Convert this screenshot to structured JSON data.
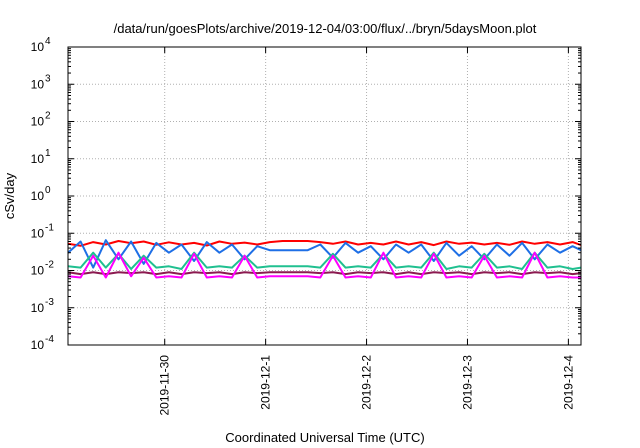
{
  "chart_data": {
    "type": "line",
    "title": "/data/run/goesPlots/archive/2019-12-04/03:00/flux/../bryn/5daysMoon.plot",
    "xlabel": "Coordinated Universal Time (UTC)",
    "ylabel": "cSv/day",
    "yscale": "log",
    "ylim": [
      0.0001,
      10000
    ],
    "xlim": [
      "2019-11-29 01:00",
      "2019-12-04 03:00"
    ],
    "grid": true,
    "legend": "none",
    "y_ticks": [
      {
        "base": "10",
        "exp": "-4",
        "value": 0.0001
      },
      {
        "base": "10",
        "exp": "-3",
        "value": 0.001
      },
      {
        "base": "10",
        "exp": "-2",
        "value": 0.01
      },
      {
        "base": "10",
        "exp": "-1",
        "value": 0.1
      },
      {
        "base": "10",
        "exp": "0",
        "value": 1
      },
      {
        "base": "10",
        "exp": "1",
        "value": 10
      },
      {
        "base": "10",
        "exp": "2",
        "value": 100
      },
      {
        "base": "10",
        "exp": "3",
        "value": 1000
      },
      {
        "base": "10",
        "exp": "4",
        "value": 10000
      }
    ],
    "x_ticks": [
      "2019-11-30",
      "2019-12-1",
      "2019-12-2",
      "2019-12-3",
      "2019-12-4"
    ],
    "x_tick_dates": [
      "2019-11-30 00:00",
      "2019-12-01 00:00",
      "2019-12-02 00:00",
      "2019-12-03 00:00",
      "2019-12-04 00:00"
    ],
    "series": [
      {
        "color": "#ff0000",
        "x": [
          "2019-11-29 01:00",
          "2019-11-29 04:00",
          "2019-11-29 07:00",
          "2019-11-29 10:00",
          "2019-11-29 13:00",
          "2019-11-29 16:00",
          "2019-11-29 19:00",
          "2019-11-29 22:00",
          "2019-11-30 01:00",
          "2019-11-30 04:00",
          "2019-11-30 07:00",
          "2019-11-30 10:00",
          "2019-11-30 13:00",
          "2019-11-30 16:00",
          "2019-11-30 19:00",
          "2019-11-30 22:00",
          "2019-12-01 01:00",
          "2019-12-01 04:00",
          "2019-12-01 07:00",
          "2019-12-01 10:00",
          "2019-12-01 13:00",
          "2019-12-01 16:00",
          "2019-12-01 19:00",
          "2019-12-01 22:00",
          "2019-12-02 01:00",
          "2019-12-02 04:00",
          "2019-12-02 07:00",
          "2019-12-02 10:00",
          "2019-12-02 13:00",
          "2019-12-02 16:00",
          "2019-12-02 19:00",
          "2019-12-02 22:00",
          "2019-12-03 01:00",
          "2019-12-03 04:00",
          "2019-12-03 07:00",
          "2019-12-03 10:00",
          "2019-12-03 13:00",
          "2019-12-03 16:00",
          "2019-12-03 19:00",
          "2019-12-03 22:00",
          "2019-12-04 01:00",
          "2019-12-04 03:00"
        ],
        "values": [
          0.052,
          0.046,
          0.058,
          0.05,
          0.062,
          0.054,
          0.06,
          0.049,
          0.057,
          0.05,
          0.055,
          0.047,
          0.06,
          0.052,
          0.056,
          0.05,
          0.058,
          0.062,
          0.062,
          0.062,
          0.058,
          0.052,
          0.06,
          0.05,
          0.055,
          0.05,
          0.06,
          0.05,
          0.058,
          0.048,
          0.06,
          0.052,
          0.056,
          0.05,
          0.055,
          0.049,
          0.06,
          0.052,
          0.058,
          0.05,
          0.058,
          0.048
        ]
      },
      {
        "color": "#1e6fe6",
        "x": [
          "2019-11-29 01:00",
          "2019-11-29 04:00",
          "2019-11-29 07:00",
          "2019-11-29 10:00",
          "2019-11-29 13:00",
          "2019-11-29 16:00",
          "2019-11-29 19:00",
          "2019-11-29 22:00",
          "2019-11-30 01:00",
          "2019-11-30 04:00",
          "2019-11-30 07:00",
          "2019-11-30 10:00",
          "2019-11-30 13:00",
          "2019-11-30 16:00",
          "2019-11-30 19:00",
          "2019-11-30 22:00",
          "2019-12-01 01:00",
          "2019-12-01 04:00",
          "2019-12-01 07:00",
          "2019-12-01 10:00",
          "2019-12-01 13:00",
          "2019-12-01 16:00",
          "2019-12-01 19:00",
          "2019-12-01 22:00",
          "2019-12-02 01:00",
          "2019-12-02 04:00",
          "2019-12-02 07:00",
          "2019-12-02 10:00",
          "2019-12-02 13:00",
          "2019-12-02 16:00",
          "2019-12-02 19:00",
          "2019-12-02 22:00",
          "2019-12-03 01:00",
          "2019-12-03 04:00",
          "2019-12-03 07:00",
          "2019-12-03 10:00",
          "2019-12-03 13:00",
          "2019-12-03 16:00",
          "2019-12-03 19:00",
          "2019-12-03 22:00",
          "2019-12-04 01:00",
          "2019-12-04 03:00"
        ],
        "values": [
          0.03,
          0.06,
          0.012,
          0.065,
          0.02,
          0.06,
          0.015,
          0.055,
          0.03,
          0.05,
          0.018,
          0.058,
          0.03,
          0.05,
          0.02,
          0.045,
          0.035,
          0.035,
          0.035,
          0.035,
          0.05,
          0.022,
          0.055,
          0.03,
          0.045,
          0.02,
          0.05,
          0.03,
          0.05,
          0.018,
          0.055,
          0.025,
          0.045,
          0.02,
          0.05,
          0.025,
          0.055,
          0.02,
          0.05,
          0.03,
          0.045,
          0.035
        ]
      },
      {
        "color": "#20c090",
        "x": [
          "2019-11-29 01:00",
          "2019-11-29 04:00",
          "2019-11-29 07:00",
          "2019-11-29 10:00",
          "2019-11-29 13:00",
          "2019-11-29 16:00",
          "2019-11-29 19:00",
          "2019-11-29 22:00",
          "2019-11-30 01:00",
          "2019-11-30 04:00",
          "2019-11-30 07:00",
          "2019-11-30 10:00",
          "2019-11-30 13:00",
          "2019-11-30 16:00",
          "2019-11-30 19:00",
          "2019-11-30 22:00",
          "2019-12-01 01:00",
          "2019-12-01 04:00",
          "2019-12-01 07:00",
          "2019-12-01 10:00",
          "2019-12-01 13:00",
          "2019-12-01 16:00",
          "2019-12-01 19:00",
          "2019-12-01 22:00",
          "2019-12-02 01:00",
          "2019-12-02 04:00",
          "2019-12-02 07:00",
          "2019-12-02 10:00",
          "2019-12-02 13:00",
          "2019-12-02 16:00",
          "2019-12-02 19:00",
          "2019-12-02 22:00",
          "2019-12-03 01:00",
          "2019-12-03 04:00",
          "2019-12-03 07:00",
          "2019-12-03 10:00",
          "2019-12-03 13:00",
          "2019-12-03 16:00",
          "2019-12-03 19:00",
          "2019-12-03 22:00",
          "2019-12-04 01:00",
          "2019-12-04 03:00"
        ],
        "values": [
          0.013,
          0.012,
          0.03,
          0.012,
          0.028,
          0.011,
          0.025,
          0.012,
          0.013,
          0.011,
          0.03,
          0.012,
          0.013,
          0.012,
          0.025,
          0.012,
          0.013,
          0.013,
          0.013,
          0.013,
          0.012,
          0.028,
          0.012,
          0.013,
          0.012,
          0.028,
          0.012,
          0.013,
          0.012,
          0.03,
          0.011,
          0.013,
          0.012,
          0.028,
          0.012,
          0.013,
          0.011,
          0.03,
          0.012,
          0.013,
          0.011,
          0.012
        ]
      },
      {
        "color": "#8b1a50",
        "x": [
          "2019-11-29 01:00",
          "2019-11-29 04:00",
          "2019-11-29 07:00",
          "2019-11-29 10:00",
          "2019-11-29 13:00",
          "2019-11-29 16:00",
          "2019-11-29 19:00",
          "2019-11-29 22:00",
          "2019-11-30 01:00",
          "2019-11-30 04:00",
          "2019-11-30 07:00",
          "2019-11-30 10:00",
          "2019-11-30 13:00",
          "2019-11-30 16:00",
          "2019-11-30 19:00",
          "2019-11-30 22:00",
          "2019-12-01 01:00",
          "2019-12-01 04:00",
          "2019-12-01 07:00",
          "2019-12-01 10:00",
          "2019-12-01 13:00",
          "2019-12-01 16:00",
          "2019-12-01 19:00",
          "2019-12-01 22:00",
          "2019-12-02 01:00",
          "2019-12-02 04:00",
          "2019-12-02 07:00",
          "2019-12-02 10:00",
          "2019-12-02 13:00",
          "2019-12-02 16:00",
          "2019-12-02 19:00",
          "2019-12-02 22:00",
          "2019-12-03 01:00",
          "2019-12-03 04:00",
          "2019-12-03 07:00",
          "2019-12-03 10:00",
          "2019-12-03 13:00",
          "2019-12-03 16:00",
          "2019-12-03 19:00",
          "2019-12-03 22:00",
          "2019-12-04 01:00",
          "2019-12-04 03:00"
        ],
        "values": [
          0.009,
          0.008,
          0.009,
          0.008,
          0.009,
          0.0085,
          0.009,
          0.008,
          0.009,
          0.008,
          0.009,
          0.0085,
          0.009,
          0.008,
          0.009,
          0.0085,
          0.009,
          0.009,
          0.009,
          0.009,
          0.0085,
          0.009,
          0.008,
          0.009,
          0.0085,
          0.009,
          0.008,
          0.009,
          0.008,
          0.009,
          0.0085,
          0.009,
          0.008,
          0.009,
          0.0085,
          0.009,
          0.008,
          0.009,
          0.0085,
          0.009,
          0.008,
          0.0085
        ]
      },
      {
        "color": "#ff00ff",
        "x": [
          "2019-11-29 01:00",
          "2019-11-29 04:00",
          "2019-11-29 07:00",
          "2019-11-29 10:00",
          "2019-11-29 13:00",
          "2019-11-29 16:00",
          "2019-11-29 19:00",
          "2019-11-29 22:00",
          "2019-11-30 01:00",
          "2019-11-30 04:00",
          "2019-11-30 07:00",
          "2019-11-30 10:00",
          "2019-11-30 13:00",
          "2019-11-30 16:00",
          "2019-11-30 19:00",
          "2019-11-30 22:00",
          "2019-12-01 01:00",
          "2019-12-01 04:00",
          "2019-12-01 07:00",
          "2019-12-01 10:00",
          "2019-12-01 13:00",
          "2019-12-01 16:00",
          "2019-12-01 19:00",
          "2019-12-01 22:00",
          "2019-12-02 01:00",
          "2019-12-02 04:00",
          "2019-12-02 07:00",
          "2019-12-02 10:00",
          "2019-12-02 13:00",
          "2019-12-02 16:00",
          "2019-12-02 19:00",
          "2019-12-02 22:00",
          "2019-12-03 01:00",
          "2019-12-03 04:00",
          "2019-12-03 07:00",
          "2019-12-03 10:00",
          "2019-12-03 13:00",
          "2019-12-03 16:00",
          "2019-12-03 19:00",
          "2019-12-03 22:00",
          "2019-12-04 01:00",
          "2019-12-04 03:00"
        ],
        "values": [
          0.007,
          0.0065,
          0.025,
          0.0065,
          0.03,
          0.007,
          0.022,
          0.0065,
          0.007,
          0.0065,
          0.028,
          0.0065,
          0.007,
          0.0065,
          0.025,
          0.0065,
          0.007,
          0.007,
          0.007,
          0.007,
          0.0065,
          0.025,
          0.0065,
          0.007,
          0.0065,
          0.03,
          0.0065,
          0.007,
          0.0065,
          0.028,
          0.0065,
          0.007,
          0.0065,
          0.025,
          0.0065,
          0.007,
          0.0065,
          0.03,
          0.0065,
          0.007,
          0.0065,
          0.0065
        ]
      }
    ]
  }
}
